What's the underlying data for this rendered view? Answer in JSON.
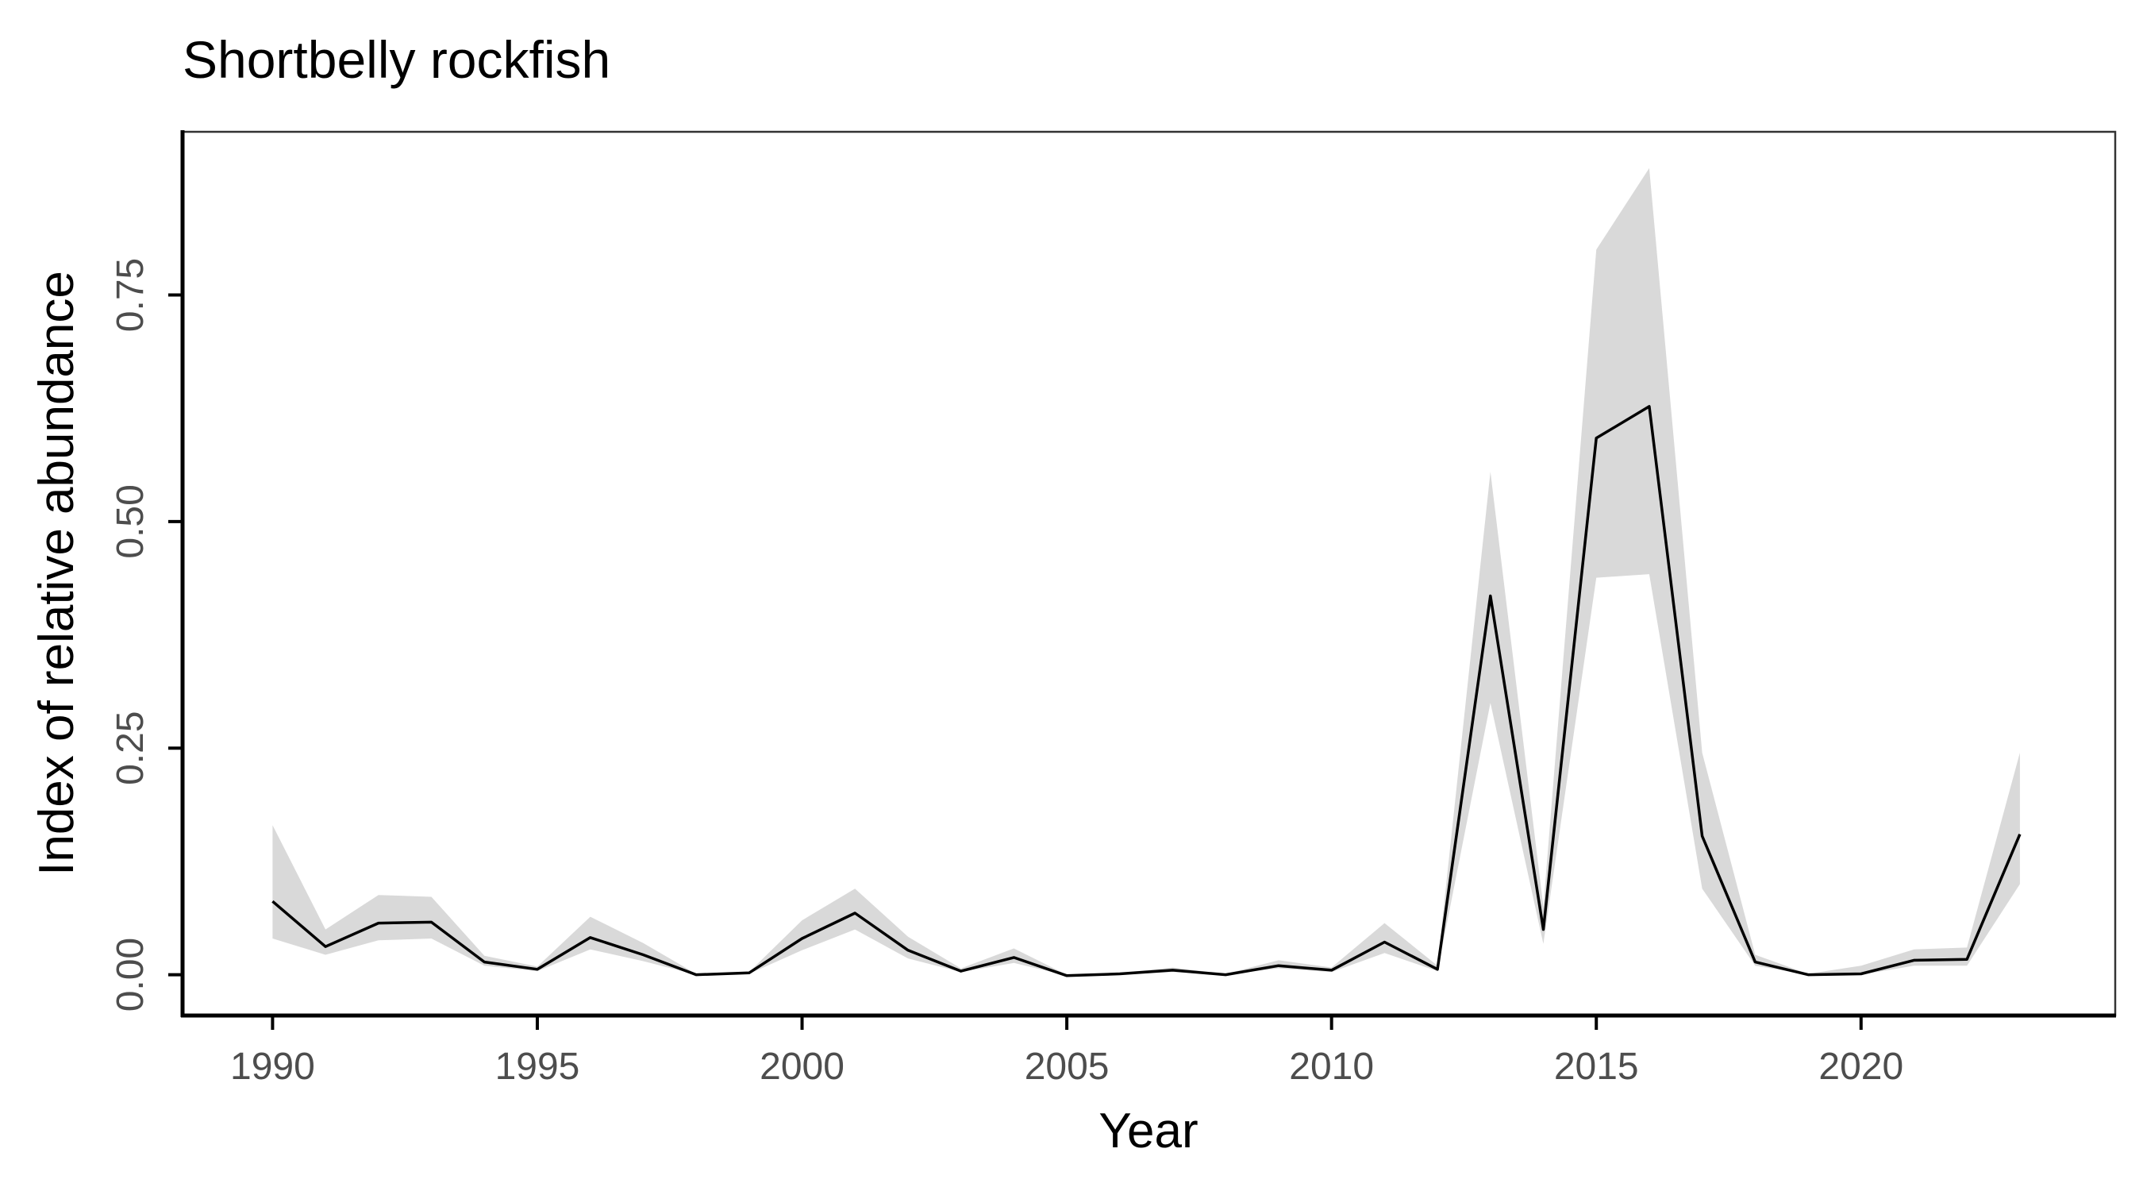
{
  "chart_data": {
    "type": "line",
    "title": "Shortbelly rockfish",
    "xlabel": "Year",
    "ylabel": "Index of relative abundance",
    "xlim": [
      1988.3,
      2024.8
    ],
    "ylim": [
      -0.045,
      0.93
    ],
    "xticks": [
      1990,
      1995,
      2000,
      2005,
      2010,
      2015,
      2020
    ],
    "xtick_labels": [
      "1990",
      "1995",
      "2000",
      "2005",
      "2010",
      "2015",
      "2020"
    ],
    "yticks": [
      0,
      0.25,
      0.5,
      0.75
    ],
    "ytick_labels": [
      "0.00",
      "0.25",
      "0.50",
      "0.75"
    ],
    "grid": false,
    "legend": "none",
    "colors": {
      "line": "#000000",
      "ribbon": "#d9d9d9",
      "axis": "#000000",
      "tick_text": "#4d4d4d"
    },
    "series": [
      {
        "x": [
          1990,
          1991,
          1992,
          1993,
          1994,
          1995,
          1996,
          1997,
          1998,
          1999,
          2000,
          2001,
          2002,
          2003,
          2004,
          2005,
          2006,
          2007,
          2008,
          2009,
          2010,
          2011,
          2012,
          2013,
          2014,
          2015,
          2016,
          2017,
          2018,
          2019,
          2020,
          2021,
          2022,
          2023
        ],
        "values": [
          0.081,
          0.031,
          0.057,
          0.058,
          0.014,
          0.006,
          0.041,
          0.022,
          0.0,
          0.002,
          0.04,
          0.068,
          0.027,
          0.004,
          0.019,
          -0.001,
          0.001,
          0.005,
          0.0,
          0.01,
          0.005,
          0.036,
          0.006,
          0.418,
          0.05,
          0.592,
          0.627,
          0.153,
          0.014,
          0.0,
          0.001,
          0.016,
          0.017,
          0.155
        ],
        "lower": [
          0.04,
          0.022,
          0.038,
          0.04,
          0.01,
          0.004,
          0.028,
          0.015,
          0.0,
          0.001,
          0.027,
          0.05,
          0.018,
          0.003,
          0.013,
          -0.001,
          0.0,
          0.003,
          0.0,
          0.007,
          0.003,
          0.024,
          0.004,
          0.3,
          0.034,
          0.438,
          0.442,
          0.095,
          0.01,
          0.0,
          0.0,
          0.01,
          0.01,
          0.1
        ],
        "upper": [
          0.165,
          0.05,
          0.088,
          0.086,
          0.021,
          0.009,
          0.064,
          0.035,
          0.001,
          0.003,
          0.06,
          0.095,
          0.042,
          0.007,
          0.029,
          0.0,
          0.002,
          0.008,
          0.001,
          0.016,
          0.008,
          0.057,
          0.01,
          0.555,
          0.075,
          0.8,
          0.89,
          0.245,
          0.022,
          0.001,
          0.01,
          0.028,
          0.03,
          0.245
        ]
      }
    ]
  }
}
